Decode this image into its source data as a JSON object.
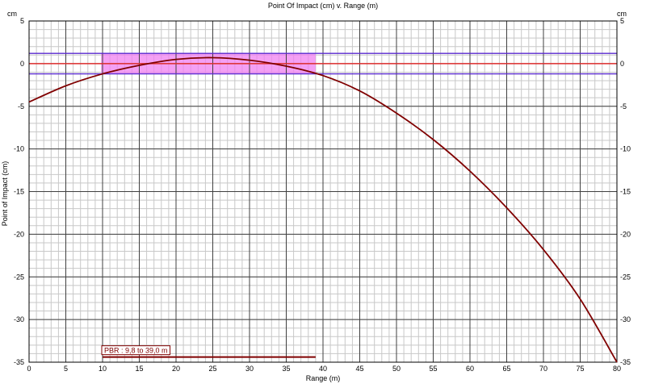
{
  "chart_data": {
    "type": "line",
    "title": "Point Of Impact (cm) v. Range (m)",
    "xlabel": "Range (m)",
    "ylabel": "Point of Impact (cm)",
    "y_unit_left": "cm",
    "y_unit_right": "cm",
    "xlim": [
      0,
      80
    ],
    "ylim": [
      -35,
      5
    ],
    "x_ticks": [
      0,
      5,
      10,
      15,
      20,
      25,
      30,
      35,
      40,
      45,
      50,
      55,
      60,
      65,
      70,
      75,
      80
    ],
    "y_ticks": [
      5,
      0,
      -5,
      -10,
      -15,
      -20,
      -25,
      -30,
      -35
    ],
    "grid": true,
    "series": [
      {
        "x": [
          0,
          5,
          10,
          15,
          20,
          25,
          30,
          35,
          40,
          45,
          50,
          55,
          60,
          65,
          70,
          75,
          80
        ],
        "y": [
          -4.5,
          -2.6,
          -1.2,
          -0.2,
          0.5,
          0.7,
          0.4,
          -0.3,
          -1.4,
          -3.2,
          -5.8,
          -8.9,
          -12.6,
          -16.9,
          -21.8,
          -27.6,
          -35.0
        ],
        "color": "#800000"
      }
    ],
    "reference_lines": [
      {
        "y": 0,
        "color": "#e03030"
      },
      {
        "y": 1.2,
        "color": "#5a2ad0"
      },
      {
        "y": -1.2,
        "color": "#5a2ad0"
      }
    ],
    "pbr_zone": {
      "x_start": 9.8,
      "x_end": 39.0,
      "y_top": 1.2,
      "y_bottom": -1.2,
      "color": "#f080f0"
    },
    "pbr_bar": {
      "x_start": 10,
      "x_end": 39,
      "y": -34.4,
      "color": "#800000"
    },
    "annotation": "PBR : 9,8 to 39,0 m"
  }
}
